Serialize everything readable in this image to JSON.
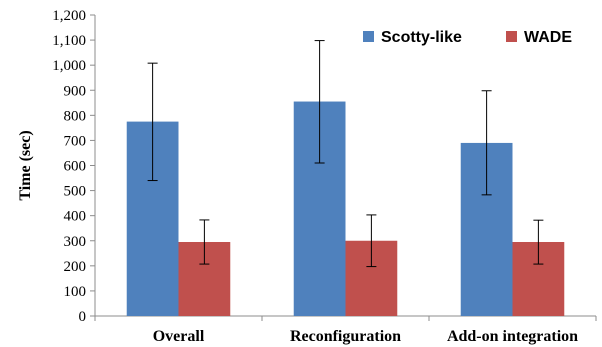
{
  "chart_data": {
    "type": "bar",
    "title": "",
    "xlabel": "",
    "ylabel": "Time (sec)",
    "ylim": [
      0,
      1200
    ],
    "yticks": [
      0,
      100,
      200,
      300,
      400,
      500,
      600,
      700,
      800,
      900,
      1000,
      1100,
      1200
    ],
    "ytick_labels": [
      "0",
      "100",
      "200",
      "300",
      "400",
      "500",
      "600",
      "700",
      "800",
      "900",
      "1,000",
      "1,100",
      "1,200"
    ],
    "categories": [
      "Overall",
      "Reconfiguration",
      "Add-on integration"
    ],
    "series": [
      {
        "name": "Scotty-like",
        "color": "#4F81BD",
        "values": [
          775,
          855,
          690
        ],
        "error_low": [
          540,
          610,
          483
        ],
        "error_high": [
          1008,
          1098,
          898
        ]
      },
      {
        "name": "WADE",
        "color": "#C0504D",
        "values": [
          295,
          300,
          295
        ],
        "error_low": [
          207,
          197,
          207
        ],
        "error_high": [
          383,
          403,
          382
        ]
      }
    ],
    "legend_position": "top-right",
    "grid": false
  }
}
